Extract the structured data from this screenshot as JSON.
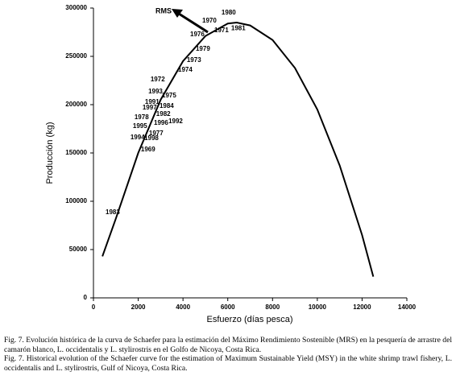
{
  "chart_data": {
    "type": "line",
    "xlabel": "Esfuerzo (días pesca)",
    "ylabel": "Producción (kg)",
    "x": [
      400,
      1000,
      2000,
      3000,
      4000,
      5000,
      6000,
      6400,
      7000,
      8000,
      9000,
      10000,
      11000,
      12000,
      12500
    ],
    "series": [
      {
        "color": "#000000",
        "values": [
          43000,
          82000,
          150000,
          205000,
          245000,
          271000,
          284000,
          285000,
          282000,
          267000,
          238000,
          195000,
          137000,
          65000,
          22000
        ]
      }
    ],
    "points": [
      {
        "label": "1980",
        "x": 5720,
        "y": 295000
      },
      {
        "label": "1970",
        "x": 4860,
        "y": 286700
      },
      {
        "label": "1976",
        "x": 4320,
        "y": 272500
      },
      {
        "label": "1971",
        "x": 5400,
        "y": 276700
      },
      {
        "label": "1981",
        "x": 6150,
        "y": 279000
      },
      {
        "label": "1979",
        "x": 4570,
        "y": 257500
      },
      {
        "label": "1973",
        "x": 4170,
        "y": 245800
      },
      {
        "label": "1974",
        "x": 3780,
        "y": 235800
      },
      {
        "label": "1972",
        "x": 2550,
        "y": 225800
      },
      {
        "label": "1993",
        "x": 2450,
        "y": 213300
      },
      {
        "label": "1975",
        "x": 3060,
        "y": 209200
      },
      {
        "label": "1991",
        "x": 2300,
        "y": 202500
      },
      {
        "label": "1984",
        "x": 2950,
        "y": 198300
      },
      {
        "label": "1997",
        "x": 2190,
        "y": 196700
      },
      {
        "label": "1982",
        "x": 2800,
        "y": 190000
      },
      {
        "label": "1978",
        "x": 1830,
        "y": 186700
      },
      {
        "label": "1996",
        "x": 2700,
        "y": 180800
      },
      {
        "label": "1992",
        "x": 3350,
        "y": 182500
      },
      {
        "label": "1995",
        "x": 1760,
        "y": 177500
      },
      {
        "label": "1977",
        "x": 2480,
        "y": 170000
      },
      {
        "label": "1994",
        "x": 1650,
        "y": 165800
      },
      {
        "label": "1998",
        "x": 2270,
        "y": 165000
      },
      {
        "label": "1969",
        "x": 2120,
        "y": 153300
      },
      {
        "label": "1983",
        "x": 540,
        "y": 88300
      }
    ],
    "annotation": "RMS",
    "xlim": [
      0,
      14000
    ],
    "xticks": [
      0,
      2000,
      4000,
      6000,
      8000,
      10000,
      12000,
      14000
    ],
    "ylim": [
      0,
      300000
    ],
    "yticks": [
      0,
      50000,
      100000,
      150000,
      200000,
      250000,
      300000
    ]
  },
  "caption": [
    "Fig. 7. Evolución histórica de la curva de Schaefer para la estimación del Máximo Rendimiento Sostenible (MRS) en la pesquería de arrastre del camarón blanco, L. occidentalis y L. stylirostris en el Golfo de Nicoya, Costa Rica.",
    "Fig. 7. Historical evolution of the Schaefer curve for the estimation of Maximum Sustainable Yield (MSY) in the white shrimp trawl fishery, L. occidentalis and L. stylirostris, Gulf of Nicoya, Costa Rica."
  ]
}
